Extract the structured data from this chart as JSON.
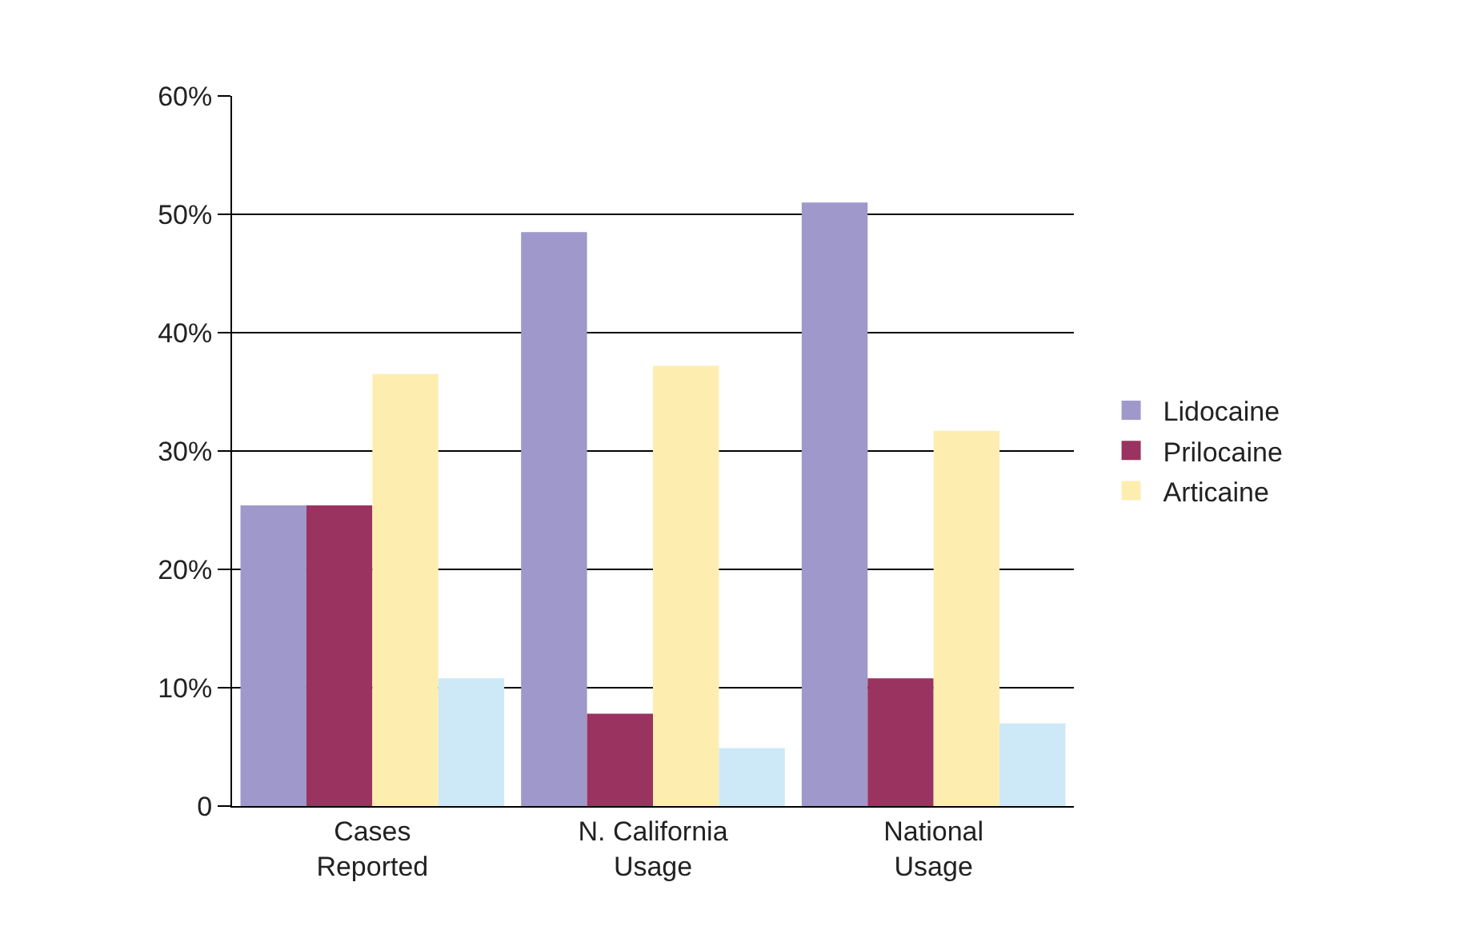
{
  "chart_data": {
    "type": "bar",
    "categories": [
      "Cases\nReported",
      "N. California\nUsage",
      "National\nUsage"
    ],
    "series": [
      {
        "name": "Lidocaine",
        "color": "#9f98cb",
        "values": [
          25.4,
          48.5,
          51.0
        ]
      },
      {
        "name": "Prilocaine",
        "color": "#9b3360",
        "values": [
          25.4,
          7.8,
          10.8
        ]
      },
      {
        "name": "Articaine",
        "color": "#fdeeb0",
        "values": [
          36.5,
          37.2,
          31.7
        ]
      },
      {
        "color": "#cde9f8",
        "values": [
          10.8,
          4.9,
          7.0
        ]
      }
    ],
    "ylim": [
      0,
      60
    ],
    "yticks": [
      {
        "value": 0,
        "label": "0"
      },
      {
        "value": 10,
        "label": "10%"
      },
      {
        "value": 20,
        "label": "20%"
      },
      {
        "value": 30,
        "label": "30%"
      },
      {
        "value": 40,
        "label": "40%"
      },
      {
        "value": 50,
        "label": "50%"
      },
      {
        "value": 60,
        "label": "60%"
      }
    ],
    "grid": "y",
    "legend": "right"
  }
}
